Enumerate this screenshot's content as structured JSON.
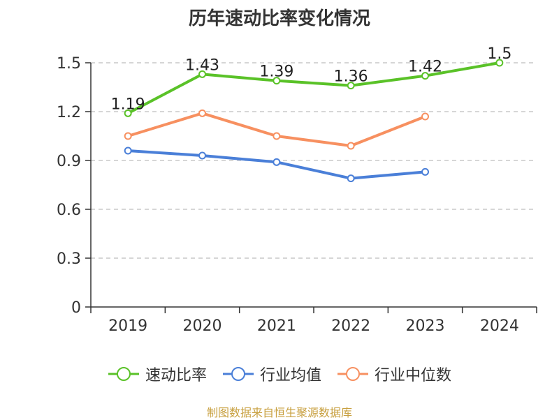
{
  "chart_data": {
    "type": "line",
    "title": "历年速动比率变化情况",
    "categories": [
      "2019",
      "2020",
      "2021",
      "2022",
      "2023",
      "2024"
    ],
    "y_ticks": [
      "0",
      "0.3",
      "0.6",
      "0.9",
      "1.2",
      "1.5"
    ],
    "ylim": [
      0,
      1.5
    ],
    "grid": true,
    "legend_position": "bottom",
    "series": [
      {
        "name": "速动比率",
        "color": "#5ac228",
        "values": [
          1.19,
          1.43,
          1.39,
          1.36,
          1.42,
          1.5
        ],
        "labels": [
          "1.19",
          "1.43",
          "1.39",
          "1.36",
          "1.42",
          "1.5"
        ]
      },
      {
        "name": "行业均值",
        "color": "#4a7fd8",
        "values": [
          0.96,
          0.93,
          0.89,
          0.79,
          0.83,
          null
        ]
      },
      {
        "name": "行业中位数",
        "color": "#f79060",
        "values": [
          1.05,
          1.19,
          1.05,
          0.99,
          1.17,
          null
        ]
      }
    ]
  },
  "source": "制图数据来自恒生聚源数据库"
}
